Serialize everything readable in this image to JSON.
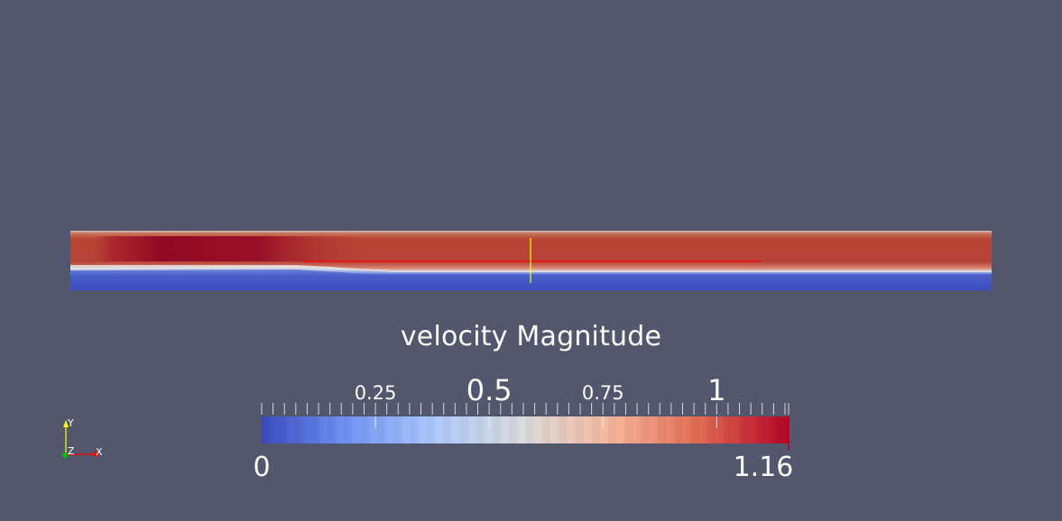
{
  "colorbar": {
    "title": "velocity Magnitude",
    "min_label": "0",
    "max_label": "1.16",
    "range": [
      0,
      1.16
    ],
    "tick_labels": [
      "0.25",
      "0.5",
      "0.75",
      "1"
    ],
    "colormap_stops": [
      "#3b4cc0",
      "#7396f5",
      "#b0cbfc",
      "#dddcdc",
      "#f6b69a",
      "#e26952",
      "#b40426"
    ]
  },
  "axes_triad": {
    "x_label": "X",
    "y_label": "Y",
    "z_label": "Z"
  },
  "colors": {
    "background": "#52576e",
    "probe_line": "#ff0000",
    "probe_marker": "#ffff00",
    "axis_x": "#ff0000",
    "axis_y": "#ffff00",
    "axis_z": "#00ff00"
  }
}
